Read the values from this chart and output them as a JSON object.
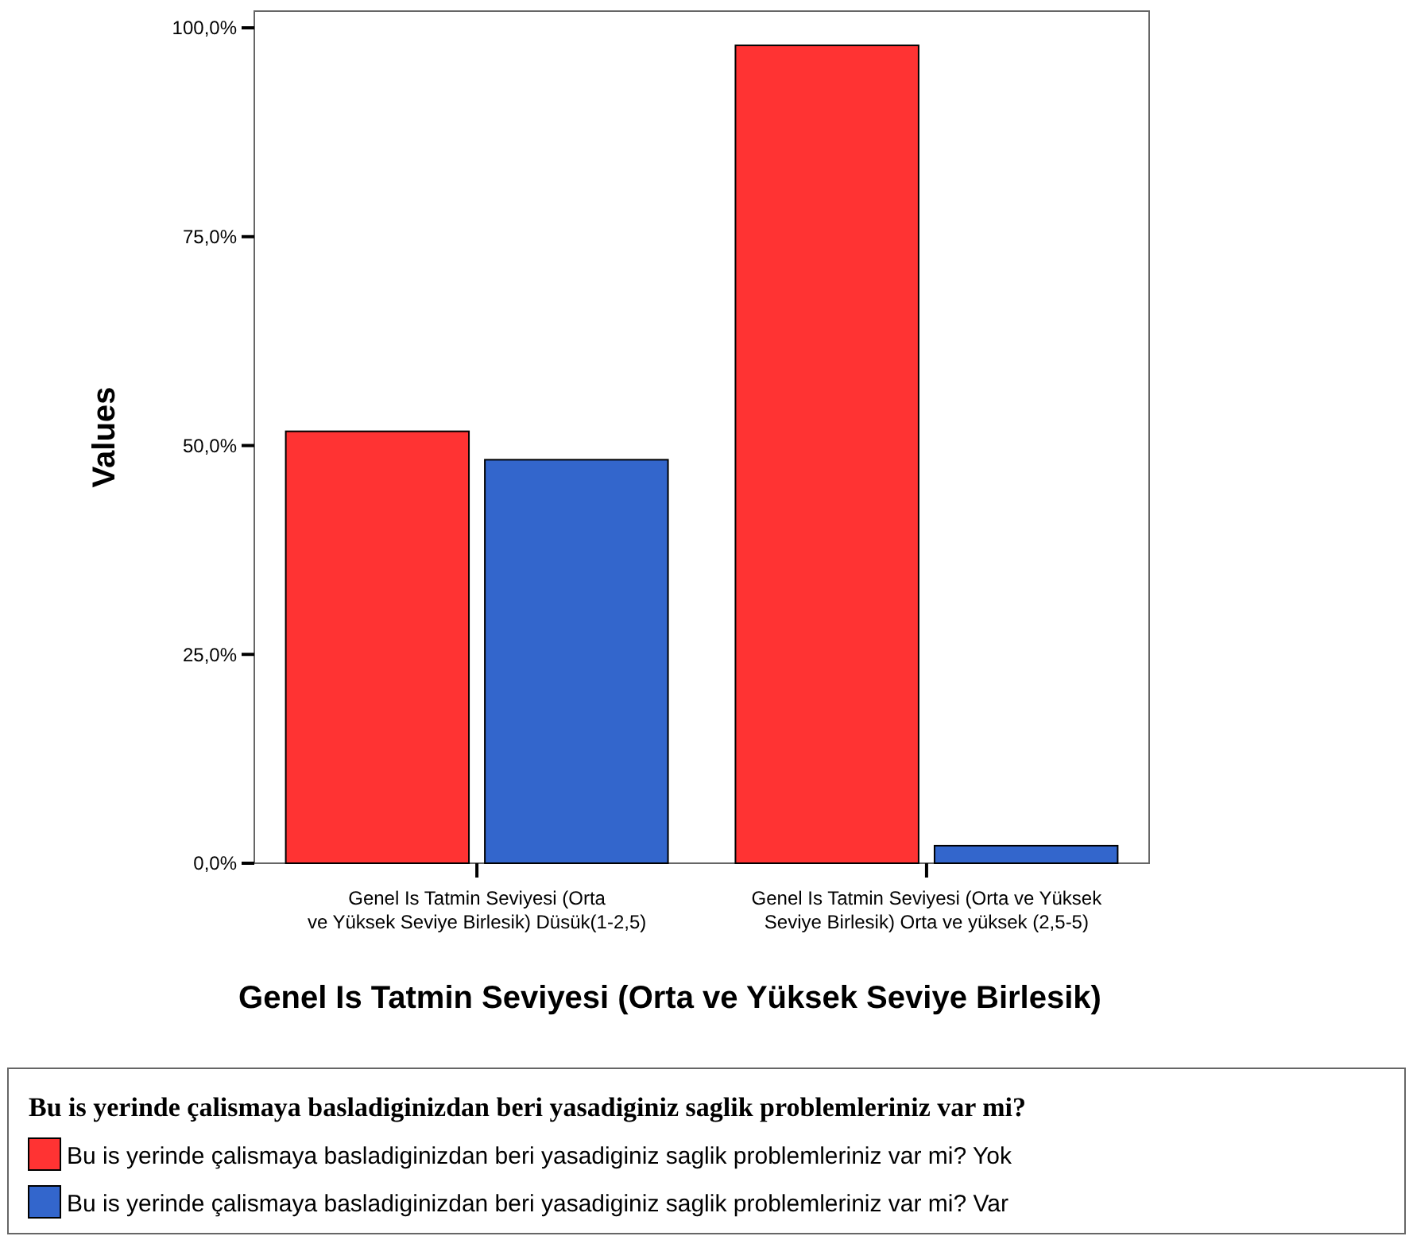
{
  "chart_data": {
    "type": "bar",
    "xlabel": "Genel Is Tatmin Seviyesi (Orta ve Yüksek Seviye Birlesik)",
    "ylabel": "Values",
    "categories": [
      "Genel Is Tatmin Seviyesi (Orta ve Yüksek Seviye Birlesik) Düsük(1-2,5)",
      "Genel Is Tatmin Seviyesi (Orta ve Yüksek Seviye Birlesik) Orta ve yüksek (2,5-5)"
    ],
    "series": [
      {
        "name": "Bu is yerinde çalismaya basladiginizdan beri yasadiginiz saglik problemleriniz var mi? Yok",
        "color": "#ff3333",
        "values": [
          51.7,
          97.9
        ]
      },
      {
        "name": "Bu is yerinde çalismaya basladiginizdan beri yasadiginiz saglik problemleriniz var mi? Var",
        "color": "#3366cc",
        "values": [
          48.3,
          2.1
        ]
      }
    ],
    "legend_title": "Bu is yerinde çalismaya basladiginizdan beri yasadiginiz saglik problemleriniz var mi?",
    "legend": "bottom",
    "grid": false,
    "ylim": [
      0,
      102
    ],
    "yticks": [
      {
        "value": 0,
        "label": "0,0%"
      },
      {
        "value": 25,
        "label": "25,0%"
      },
      {
        "value": 50,
        "label": "50,0%"
      },
      {
        "value": 75,
        "label": "75,0%"
      },
      {
        "value": 100,
        "label": "100,0%"
      }
    ]
  }
}
